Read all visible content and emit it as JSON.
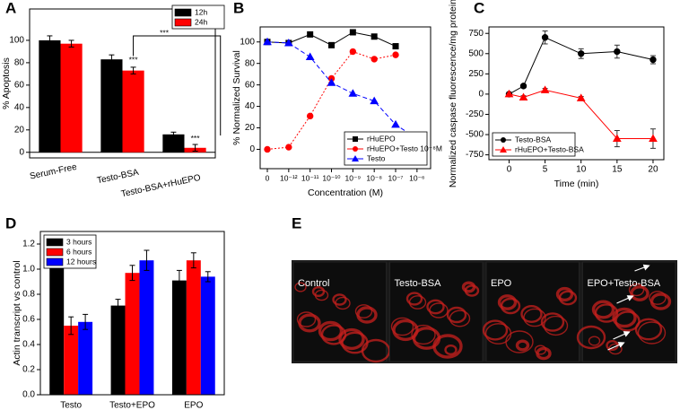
{
  "chart_data": [
    {
      "type": "bar",
      "label": "A",
      "ylabel": "% Apoptosis",
      "categories": [
        "Serum-Free",
        "Testo-BSA",
        "Testo-BSA+rHuEPO"
      ],
      "series": [
        {
          "name": "12h",
          "color": "#000000",
          "values": [
            100,
            83,
            16
          ],
          "errors": [
            4,
            4,
            2
          ]
        },
        {
          "name": "24h",
          "color": "#ff0000",
          "values": [
            97,
            73,
            4
          ],
          "errors": [
            3,
            3,
            3
          ]
        }
      ],
      "annotations": [
        "***",
        "***",
        "***"
      ],
      "ylim": [
        -5,
        128
      ],
      "yticks": [
        0,
        20,
        40,
        60,
        80,
        100
      ],
      "legend": "upper right"
    },
    {
      "type": "line",
      "label": "B",
      "ylabel": "% Normalized Survival",
      "xlabel": "Concentration (M)",
      "categories": [
        "0",
        "10⁻¹²",
        "10⁻¹¹",
        "10⁻¹⁰",
        "10⁻⁹",
        "10⁻⁸",
        "10⁻⁷",
        "10⁻⁶"
      ],
      "series": [
        {
          "name": "rHuEPO",
          "color": "#000000",
          "marker": "square",
          "linestyle": "solid",
          "values": [
            100,
            99,
            107,
            97,
            109,
            105,
            96,
            null
          ]
        },
        {
          "name": "rHuEPO+Testo 10⁻⁸M",
          "color": "#ff0000",
          "marker": "circle",
          "linestyle": "dotted",
          "values": [
            0,
            2,
            31,
            66,
            91,
            84,
            88,
            null
          ]
        },
        {
          "name": "Testo",
          "color": "#0000ff",
          "marker": "triangle",
          "linestyle": "dashed",
          "values": [
            100,
            99,
            86,
            62,
            52,
            45,
            23,
            10
          ]
        }
      ],
      "ylim": [
        -18,
        114
      ],
      "yticks": [
        0,
        20,
        40,
        60,
        80,
        100
      ],
      "legend": "lower right"
    },
    {
      "type": "line",
      "label": "C",
      "ylabel": "Normalized caspase fluorescence/mg protein",
      "xlabel": "Time (min)",
      "x": [
        0,
        2,
        5,
        10,
        15,
        20
      ],
      "series": [
        {
          "name": "Testo-BSA",
          "color": "#000000",
          "marker": "circle",
          "linestyle": "solid",
          "values": [
            0,
            100,
            700,
            500,
            525,
            425
          ],
          "errors": [
            20,
            20,
            80,
            60,
            80,
            50
          ]
        },
        {
          "name": "rHuEPO+Testo-BSA",
          "color": "#ff0000",
          "marker": "triangle",
          "linestyle": "solid",
          "values": [
            0,
            -40,
            50,
            -50,
            -550,
            -550
          ],
          "errors": [
            20,
            20,
            20,
            20,
            100,
            120
          ]
        }
      ],
      "xlim": [
        -2.8,
        21.5
      ],
      "xticks": [
        0,
        5,
        10,
        15,
        20
      ],
      "ylim": [
        -810,
        830
      ],
      "yticks": [
        -750,
        -500,
        -250,
        0,
        250,
        500,
        750
      ],
      "legend": "lower left"
    },
    {
      "type": "bar",
      "label": "D",
      "ylabel": "Actin transcript vs control",
      "categories": [
        "Testo",
        "Testo+EPO",
        "EPO"
      ],
      "series": [
        {
          "name": "3 hours",
          "color": "#000000",
          "values": [
            1.03,
            0.71,
            0.91
          ],
          "errors": [
            0.05,
            0.05,
            0.08
          ]
        },
        {
          "name": "6 hours",
          "color": "#ff0000",
          "values": [
            0.55,
            0.97,
            1.07
          ],
          "errors": [
            0.07,
            0.06,
            0.06
          ]
        },
        {
          "name": "12 hours",
          "color": "#0000ff",
          "values": [
            0.58,
            1.07,
            0.94
          ],
          "errors": [
            0.06,
            0.08,
            0.04
          ]
        }
      ],
      "ylim": [
        0,
        1.3
      ],
      "yticks": [
        {
          "value": 0,
          "label": "0.0"
        },
        {
          "value": 0.2,
          "label": "0.2"
        },
        {
          "value": 0.4,
          "label": "0.4"
        },
        {
          "value": 0.6,
          "label": "0.6"
        },
        {
          "value": 0.8,
          "label": "0.8"
        },
        {
          "value": 1,
          "label": "1.0"
        },
        {
          "value": 1.2,
          "label": "1.2"
        }
      ],
      "legend": "upper left"
    },
    {
      "type": "image",
      "label": "E",
      "labels": [
        "Control",
        "Testo-BSA",
        "EPO",
        "EPO+Testo-BSA"
      ]
    }
  ]
}
